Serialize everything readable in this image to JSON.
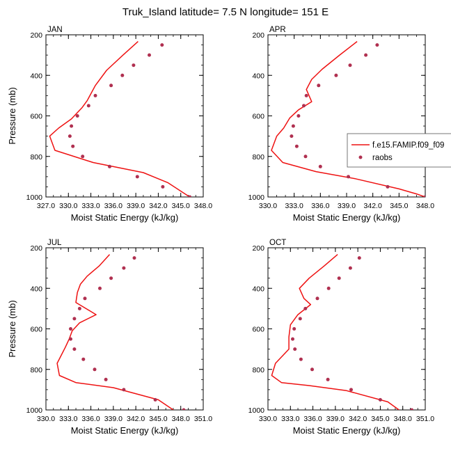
{
  "title": "Truk_Island  latitude= 7.5 N longitude= 151 E",
  "colors": {
    "model_line": "#ee1111",
    "raobs_marker": "#b03050",
    "axes": "#000000"
  },
  "legend": {
    "placement": "right of APR panel",
    "entries": [
      {
        "label": "f.e15.FAMIP.f09_f09",
        "symbol": "line",
        "color": "#ee1111"
      },
      {
        "label": "raobs",
        "symbol": "dot",
        "color": "#b03050"
      }
    ]
  },
  "chart_data": [
    {
      "type": "line",
      "panel_label": "JAN",
      "xlabel": "Moist Static Energy (kJ/kg)",
      "ylabel": "Pressure (mb)",
      "xlim": [
        327.0,
        348.0
      ],
      "xticks": [
        327.0,
        330.0,
        333.0,
        336.0,
        339.0,
        342.0,
        345.0,
        348.0
      ],
      "xtick_labels": [
        "327.0",
        "330.0",
        "333.0",
        "336.0",
        "339.0",
        "342.0",
        "345.0",
        "348.0"
      ],
      "ylim": [
        1000,
        200
      ],
      "yticks": [
        200,
        400,
        600,
        800,
        1000
      ],
      "ytick_labels": [
        "200",
        "400",
        "600",
        "800",
        "1000"
      ],
      "series": [
        {
          "name": "f.e15.FAMIP.f09_f09",
          "kind": "line",
          "x": [
            339.3,
            337.3,
            335.1,
            333.6,
            332.5,
            331.8,
            330.4,
            328.7,
            327.5,
            328.2,
            333.3,
            340.0,
            343.3,
            346.2
          ],
          "y": [
            233,
            300,
            375,
            450,
            525,
            560,
            615,
            660,
            700,
            770,
            830,
            880,
            930,
            1000
          ]
        },
        {
          "name": "raobs",
          "kind": "scatter",
          "x": [
            342.5,
            340.8,
            338.7,
            337.2,
            335.7,
            333.6,
            332.7,
            331.2,
            330.4,
            330.2,
            330.6,
            331.9,
            335.5,
            339.2,
            342.6,
            346.2
          ],
          "y": [
            250,
            300,
            350,
            400,
            450,
            500,
            550,
            600,
            650,
            700,
            750,
            800,
            850,
            900,
            950,
            1000
          ]
        }
      ]
    },
    {
      "type": "line",
      "panel_label": "APR",
      "xlabel": "Moist Static Energy (kJ/kg)",
      "ylabel": "",
      "xlim": [
        330.0,
        348.0
      ],
      "xticks": [
        330.0,
        333.0,
        336.0,
        339.0,
        342.0,
        345.0,
        348.0
      ],
      "xtick_labels": [
        "330.0",
        "333.0",
        "336.0",
        "339.0",
        "342.0",
        "345.0",
        "348.0"
      ],
      "ylim": [
        1000,
        200
      ],
      "yticks": [
        200,
        400,
        600,
        800,
        1000
      ],
      "ytick_labels": [
        "200",
        "400",
        "600",
        "800",
        "1000"
      ],
      "series": [
        {
          "name": "f.e15.FAMIP.f09_f09",
          "kind": "line",
          "x": [
            340.2,
            338.2,
            336.2,
            335.0,
            334.4,
            335.0,
            333.5,
            332.5,
            331.8,
            331.0,
            330.4,
            331.7,
            335.5,
            340.0,
            345.0,
            347.0,
            348.0
          ],
          "y": [
            233,
            300,
            370,
            420,
            470,
            530,
            570,
            610,
            660,
            700,
            770,
            830,
            875,
            910,
            960,
            985,
            1000
          ]
        },
        {
          "name": "raobs",
          "kind": "scatter",
          "x": [
            342.5,
            341.2,
            339.4,
            337.8,
            335.8,
            334.4,
            334.1,
            333.5,
            332.9,
            332.7,
            333.3,
            334.3,
            336.0,
            339.2,
            343.7,
            348.0
          ],
          "y": [
            250,
            300,
            350,
            400,
            450,
            500,
            550,
            600,
            650,
            700,
            750,
            800,
            850,
            900,
            950,
            1000
          ]
        }
      ]
    },
    {
      "type": "line",
      "panel_label": "JUL",
      "xlabel": "Moist Static Energy (kJ/kg)",
      "ylabel": "Pressure (mb)",
      "xlim": [
        330.0,
        351.0
      ],
      "xticks": [
        330.0,
        333.0,
        336.0,
        339.0,
        342.0,
        345.0,
        348.0,
        351.0
      ],
      "xtick_labels": [
        "330.0",
        "333.0",
        "336.0",
        "339.0",
        "342.0",
        "345.0",
        "348.0",
        "351.0"
      ],
      "ylim": [
        1000,
        200
      ],
      "yticks": [
        200,
        400,
        600,
        800,
        1000
      ],
      "ytick_labels": [
        "200",
        "400",
        "600",
        "800",
        "1000"
      ],
      "series": [
        {
          "name": "f.e15.FAMIP.f09_f09",
          "kind": "line",
          "x": [
            338.5,
            337.1,
            335.5,
            334.6,
            334.2,
            334.0,
            336.7,
            334.5,
            333.5,
            333.1,
            332.6,
            331.5,
            331.8,
            334.0,
            339.0,
            345.0,
            347.0
          ],
          "y": [
            233,
            290,
            340,
            380,
            420,
            470,
            530,
            570,
            610,
            650,
            690,
            770,
            830,
            865,
            890,
            950,
            1000
          ]
        },
        {
          "name": "raobs",
          "kind": "scatter",
          "x": [
            341.8,
            340.4,
            338.7,
            337.2,
            335.2,
            334.5,
            333.8,
            333.3,
            333.3,
            333.8,
            335.0,
            336.5,
            338.0,
            340.4,
            344.6,
            348.4
          ],
          "y": [
            250,
            300,
            350,
            400,
            450,
            500,
            550,
            600,
            650,
            700,
            750,
            800,
            850,
            900,
            950,
            1000
          ]
        }
      ]
    },
    {
      "type": "line",
      "panel_label": "OCT",
      "xlabel": "Moist Static Energy (kJ/kg)",
      "ylabel": "",
      "xlim": [
        330.0,
        351.0
      ],
      "xticks": [
        330.0,
        333.0,
        336.0,
        339.0,
        342.0,
        345.0,
        348.0,
        351.0
      ],
      "xtick_labels": [
        "330.0",
        "333.0",
        "336.0",
        "339.0",
        "342.0",
        "345.0",
        "348.0",
        "351.0"
      ],
      "ylim": [
        1000,
        200
      ],
      "yticks": [
        200,
        400,
        600,
        800,
        1000
      ],
      "ytick_labels": [
        "200",
        "400",
        "600",
        "800",
        "1000"
      ],
      "series": [
        {
          "name": "f.e15.FAMIP.f09_f09",
          "kind": "line",
          "x": [
            339.3,
            337.5,
            335.5,
            334.2,
            334.8,
            335.7,
            334.0,
            333.0,
            332.8,
            332.8,
            331.0,
            330.5,
            331.8,
            335.5,
            340.5,
            346.0,
            347.5
          ],
          "y": [
            233,
            290,
            350,
            400,
            450,
            480,
            530,
            580,
            640,
            700,
            770,
            830,
            865,
            880,
            905,
            960,
            1000
          ]
        },
        {
          "name": "raobs",
          "kind": "scatter",
          "x": [
            342.2,
            341.0,
            339.5,
            338.1,
            336.6,
            335.0,
            334.3,
            333.5,
            333.3,
            333.6,
            334.4,
            335.9,
            338.0,
            341.1,
            345.0,
            349.2
          ],
          "y": [
            250,
            300,
            350,
            400,
            450,
            500,
            550,
            600,
            650,
            700,
            750,
            800,
            850,
            900,
            950,
            1000
          ]
        }
      ]
    }
  ]
}
